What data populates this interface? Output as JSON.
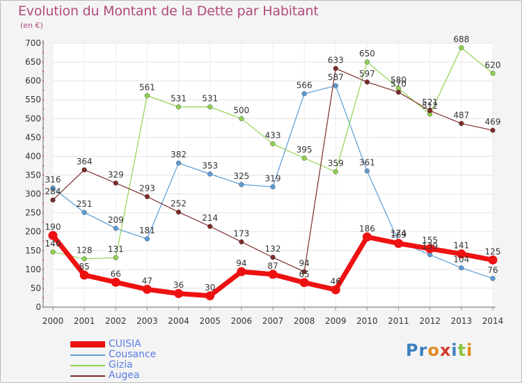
{
  "header": {
    "title": "Evolution du Montant de la Dette par Habitant",
    "subtitle": "(en €)"
  },
  "logo": {
    "text": "Proxiti",
    "colors": [
      "#3d7fc1",
      "#3d7fc1",
      "#e08a1e",
      "#cf3a2e",
      "#3d7fc1",
      "#8cc640",
      "#e08a1e"
    ]
  },
  "chart_data": {
    "type": "line",
    "x": [
      "2000",
      "2001",
      "2002",
      "2003",
      "2004",
      "2005",
      "2006",
      "2007",
      "2008",
      "2009",
      "2010",
      "2011",
      "2012",
      "2013",
      "2014"
    ],
    "ylim": [
      0,
      700
    ],
    "yticks": [
      0,
      50,
      100,
      150,
      200,
      250,
      300,
      350,
      400,
      450,
      500,
      550,
      600,
      650,
      700
    ],
    "grid": true,
    "legend_position": "bottom-left",
    "series": [
      {
        "name": "CUISIA",
        "color": "#ee1111",
        "emphasis": true,
        "values": [
          190,
          85,
          66,
          47,
          36,
          30,
          94,
          87,
          65,
          46,
          186,
          169,
          155,
          141,
          125
        ]
      },
      {
        "name": "Cousance",
        "color": "#5b9bd5",
        "emphasis": false,
        "values": [
          316,
          251,
          209,
          181,
          382,
          353,
          325,
          319,
          566,
          587,
          361,
          174,
          139,
          104,
          76
        ]
      },
      {
        "name": "Gizia",
        "color": "#8fd14f",
        "emphasis": false,
        "values": [
          146,
          128,
          131,
          561,
          531,
          531,
          500,
          433,
          395,
          359,
          650,
          580,
          512,
          688,
          620
        ]
      },
      {
        "name": "Augea",
        "color": "#7b2a2a",
        "emphasis": false,
        "values": [
          284,
          364,
          329,
          293,
          252,
          214,
          173,
          132,
          94,
          633,
          597,
          570,
          521,
          487,
          469
        ]
      }
    ]
  }
}
